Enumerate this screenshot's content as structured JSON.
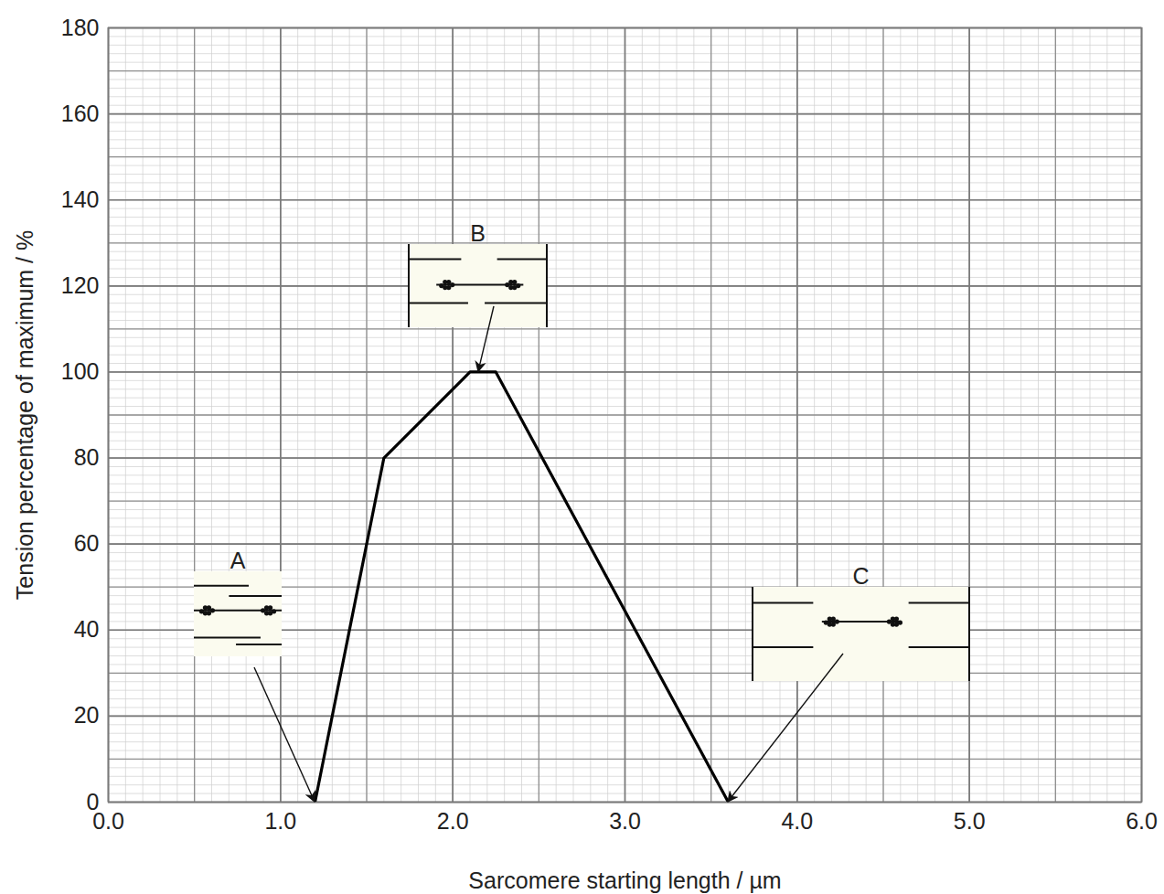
{
  "chart_data": {
    "type": "line",
    "x_label": "Sarcomere starting length / µm",
    "y_label": "Tension percentage of maximum / %",
    "x": [
      1.2,
      1.6,
      2.1,
      2.25,
      3.6
    ],
    "values": [
      0,
      80,
      100,
      100,
      0
    ],
    "color": "#000000",
    "xlim": [
      0,
      6
    ],
    "xticks": [
      {
        "value": 0,
        "label": "0.0"
      },
      {
        "value": 1,
        "label": "1.0"
      },
      {
        "value": 2,
        "label": "2.0"
      },
      {
        "value": 3,
        "label": "3.0"
      },
      {
        "value": 4,
        "label": "4.0"
      },
      {
        "value": 5,
        "label": "5.0"
      },
      {
        "value": 6,
        "label": "6.0"
      }
    ],
    "ylim": [
      0,
      180
    ],
    "yticks": [
      0,
      20,
      40,
      60,
      80,
      100,
      120,
      140,
      160,
      180
    ],
    "grid": true,
    "annotations": [
      {
        "text": "A",
        "x": 1.2,
        "y": 0
      },
      {
        "text": "B",
        "x": 2.15,
        "y": 100
      },
      {
        "text": "C",
        "x": 3.6,
        "y": 0
      }
    ]
  }
}
